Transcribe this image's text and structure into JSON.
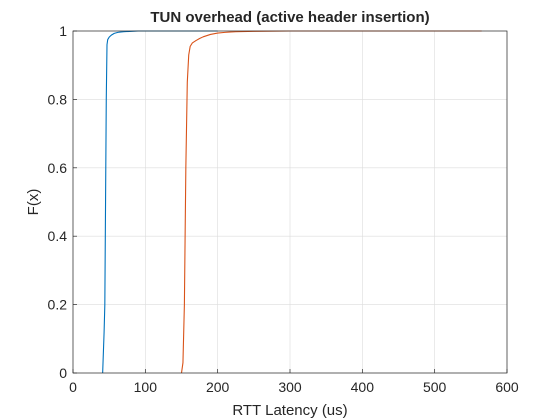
{
  "chart_data": {
    "type": "line",
    "title": "TUN overhead (active header insertion)",
    "xlabel": "RTT Latency (us)",
    "ylabel": "F(x)",
    "xlim": [
      0,
      600
    ],
    "ylim": [
      0,
      1
    ],
    "xticks": [
      0,
      100,
      200,
      300,
      400,
      500,
      600
    ],
    "yticks": [
      0,
      0.2,
      0.4,
      0.6,
      0.8,
      1
    ],
    "xtick_labels": [
      "0",
      "100",
      "200",
      "300",
      "400",
      "500",
      "600"
    ],
    "ytick_labels": [
      "0",
      "0.2",
      "0.4",
      "0.6",
      "0.8",
      "1"
    ],
    "grid": true,
    "series": [
      {
        "color": "#0072BD",
        "x": [
          41,
          43,
          44,
          45,
          46,
          47,
          48,
          50,
          53,
          57,
          62,
          70,
          90,
          200
        ],
        "y": [
          0,
          0.12,
          0.2,
          0.5,
          0.8,
          0.96,
          0.975,
          0.982,
          0.988,
          0.993,
          0.996,
          0.998,
          1,
          1
        ]
      },
      {
        "color": "#D95319",
        "x": [
          150,
          152,
          154,
          156,
          158,
          160,
          162,
          165,
          170,
          175,
          180,
          190,
          200,
          210,
          225,
          250,
          300,
          400,
          565
        ],
        "y": [
          0,
          0.03,
          0.2,
          0.6,
          0.85,
          0.93,
          0.955,
          0.965,
          0.972,
          0.978,
          0.983,
          0.99,
          0.994,
          0.996,
          0.998,
          0.999,
          1,
          1,
          1
        ]
      }
    ]
  }
}
